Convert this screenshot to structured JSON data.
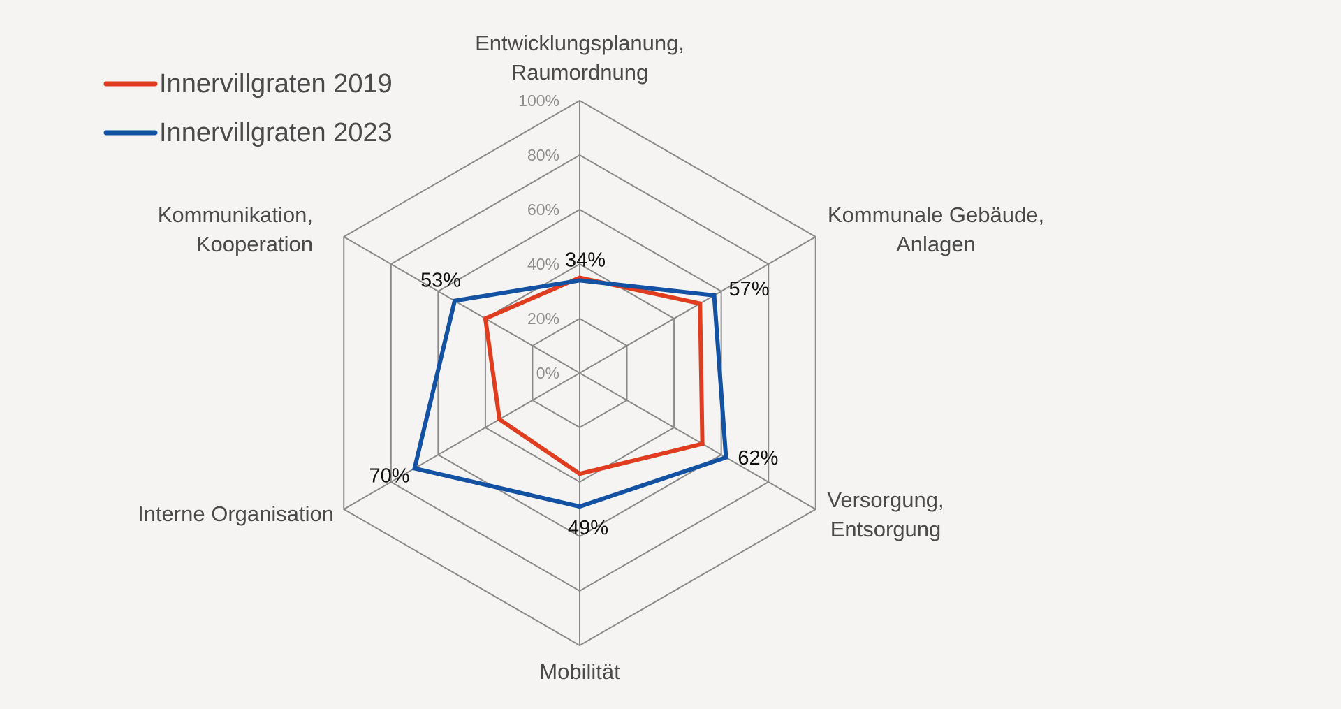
{
  "chart_data": {
    "type": "radar",
    "title": "",
    "categories": [
      "Entwicklungsplanung, Raumordnung",
      "Kommunale Gebäude, Anlagen",
      "Versorgung, Entsorgung",
      "Mobilität",
      "Interne Organisation",
      "Kommunikation, Kooperation"
    ],
    "category_label_lines": [
      [
        "Entwicklungsplanung,",
        "Raumordnung"
      ],
      [
        "Kommunale Gebäude,",
        "Anlagen"
      ],
      [
        "Versorgung,",
        "Entsorgung"
      ],
      [
        "Mobilität"
      ],
      [
        "Interne Organisation"
      ],
      [
        "Kommunikation,",
        "Kooperation"
      ]
    ],
    "series": [
      {
        "name": "Innervillgraten 2019",
        "color": "#e03c1f",
        "values": [
          35,
          51,
          52,
          37,
          34,
          40
        ]
      },
      {
        "name": "Innervillgraten 2023",
        "color": "#1352a2",
        "values": [
          34,
          57,
          62,
          49,
          70,
          53
        ]
      }
    ],
    "data_labels": [
      "34%",
      "57%",
      "62%",
      "49%",
      "70%",
      "53%"
    ],
    "data_labels_series": "Innervillgraten 2023",
    "radial_ticks": [
      "0%",
      "20%",
      "40%",
      "60%",
      "80%",
      "100%"
    ],
    "rlim": [
      0,
      100
    ],
    "grid": true,
    "legend_position": "top-left"
  }
}
